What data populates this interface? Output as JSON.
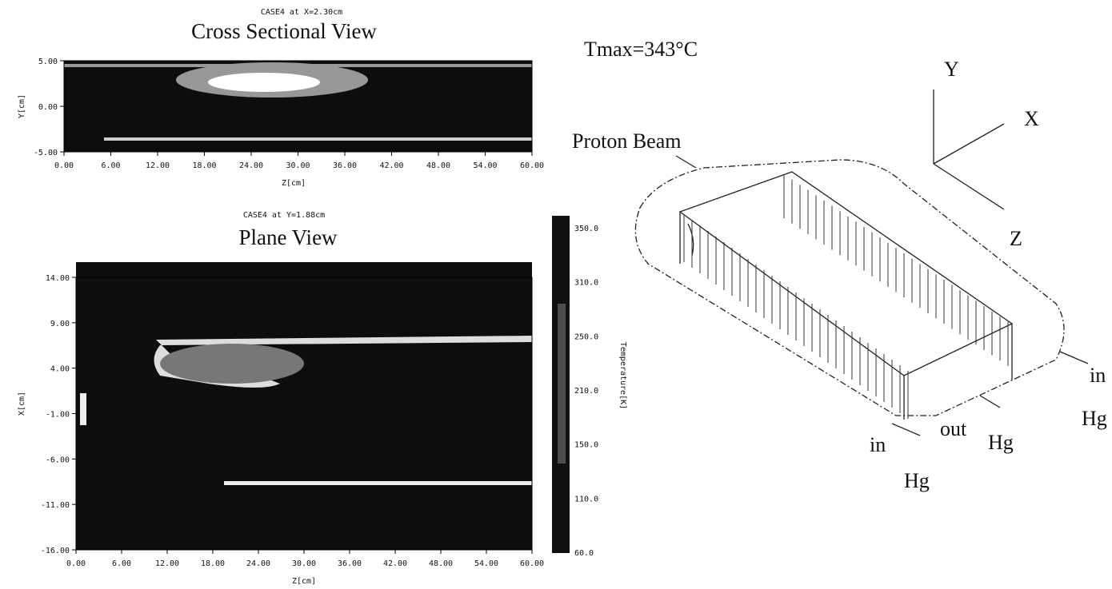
{
  "figure": {
    "cross_section": {
      "header": "CASE4 at X=2.30cm",
      "title": "Cross Sectional View",
      "y_label": "Y[cm]",
      "x_label": "Z[cm]",
      "y_ticks": [
        "5.00",
        "0.00",
        "-5.00"
      ],
      "x_ticks": [
        "0.00",
        "6.00",
        "12.00",
        "18.00",
        "24.00",
        "30.00",
        "36.00",
        "42.00",
        "48.00",
        "54.00",
        "60.00"
      ]
    },
    "plane": {
      "header": "CASE4 at Y=1.88cm",
      "title": "Plane View",
      "y_label": "X[cm]",
      "x_label": "Z[cm]",
      "y_ticks": [
        "14.00",
        "9.00",
        "4.00",
        "-1.00",
        "-6.00",
        "-11.00",
        "-16.00"
      ],
      "x_ticks": [
        "0.00",
        "6.00",
        "12.00",
        "18.00",
        "24.00",
        "30.00",
        "36.00",
        "42.00",
        "48.00",
        "54.00",
        "60.00"
      ],
      "colorbar": {
        "label": "Temperature[K]",
        "ticks": [
          "350.0",
          "310.0",
          "250.0",
          "210.0",
          "150.0",
          "110.0",
          "60.0"
        ]
      }
    },
    "diagram": {
      "tmax": "Tmax=343°C",
      "axis_y": "Y",
      "axis_x": "X",
      "axis_z": "Z",
      "beam": "Proton Beam",
      "in_right": "in",
      "hg_right": "Hg",
      "out": "out",
      "hg_out": "Hg",
      "in_left": "in",
      "hg_left": "Hg"
    }
  }
}
